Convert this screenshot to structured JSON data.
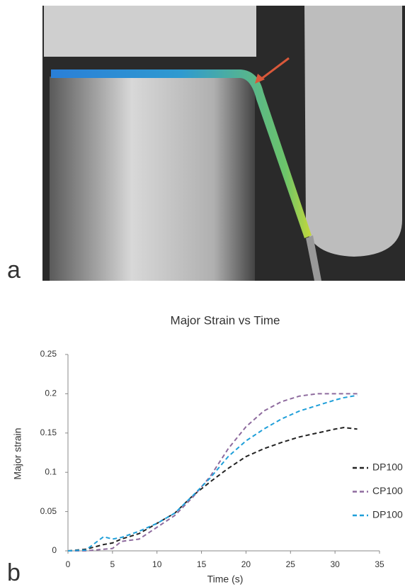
{
  "panel_labels": [
    "a",
    "b"
  ],
  "chart_data": {
    "type": "line",
    "title": "Major Strain vs Time",
    "x_label": "Time (s)",
    "y_label": "Major strain",
    "x": [
      0,
      2,
      4,
      5,
      6,
      8,
      10,
      12,
      14,
      16,
      18,
      20,
      22,
      24,
      26,
      28,
      30,
      31,
      32.5
    ],
    "series": [
      {
        "name": "DP100",
        "color": "#222222",
        "values": [
          0,
          0.002,
          0.008,
          0.01,
          0.015,
          0.022,
          0.035,
          0.048,
          0.07,
          0.088,
          0.105,
          0.12,
          0.13,
          0.138,
          0.145,
          0.15,
          0.155,
          0.157,
          0.155
        ]
      },
      {
        "name": "CP100",
        "color": "#8e6b9e",
        "values": [
          0,
          0,
          0.002,
          0.003,
          0.012,
          0.015,
          0.03,
          0.045,
          0.068,
          0.095,
          0.13,
          0.158,
          0.178,
          0.19,
          0.197,
          0.2,
          0.2,
          0.2,
          0.2
        ]
      },
      {
        "name": "DP100",
        "color": "#1f9fd9",
        "values": [
          0,
          0.001,
          0.018,
          0.015,
          0.017,
          0.025,
          0.035,
          0.048,
          0.07,
          0.093,
          0.12,
          0.14,
          0.155,
          0.168,
          0.178,
          0.185,
          0.192,
          0.195,
          0.198
        ]
      }
    ],
    "xlim": [
      0,
      35
    ],
    "xticks": [
      0,
      5,
      10,
      15,
      20,
      25,
      30,
      35
    ],
    "ylim": [
      0,
      0.25
    ],
    "yticks": [
      0,
      0.05,
      0.1,
      0.15,
      0.2,
      0.25
    ],
    "grid": false,
    "dashed": true,
    "legend": "right"
  }
}
